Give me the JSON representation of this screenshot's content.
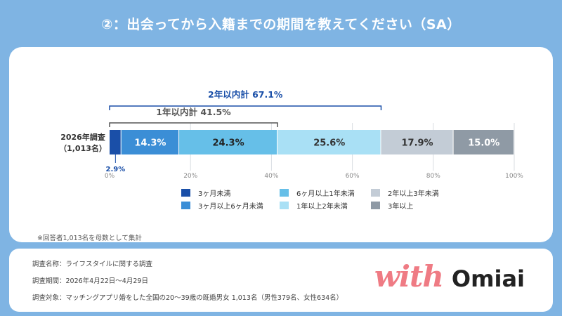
{
  "title": "②：出会ってから入籍までの期間を教えてください（SA）",
  "chart_data": {
    "type": "bar",
    "orientation": "horizontal-stacked-100",
    "category": "2026年調査（1,013名）",
    "category_lines": [
      "2026年調査",
      "（1,013名）"
    ],
    "series": [
      {
        "name": "3ヶ月未満",
        "value": 2.9,
        "label": "2.9%",
        "color": "#1a4fa8"
      },
      {
        "name": "3ヶ月以上6ヶ月未満",
        "value": 14.3,
        "label": "14.3%",
        "color": "#3b8ed6"
      },
      {
        "name": "6ヶ月以上1年未満",
        "value": 24.3,
        "label": "24.3%",
        "color": "#66bfe8"
      },
      {
        "name": "1年以上2年未満",
        "value": 25.6,
        "label": "25.6%",
        "color": "#a9e0f5"
      },
      {
        "name": "2年以上3年未満",
        "value": 17.9,
        "label": "17.9%",
        "color": "#c3ccd6"
      },
      {
        "name": "3年以上",
        "value": 15.0,
        "label": "15.0%",
        "color": "#8f9aa5"
      }
    ],
    "xlim": [
      0,
      100
    ],
    "ticks": [
      "0%",
      "20%",
      "40%",
      "60%",
      "80%",
      "100%"
    ],
    "tick_values": [
      0,
      20,
      40,
      60,
      80,
      100
    ],
    "annotations": [
      {
        "text": "2年以内計 67.1%",
        "from": 0,
        "to": 67.1,
        "color": "#1a4fa8"
      },
      {
        "text": "1年以内計 41.5%",
        "from": 0,
        "to": 41.5,
        "color": "#555555"
      }
    ],
    "legend_order": [
      0,
      2,
      4,
      1,
      3,
      5
    ]
  },
  "note": "※回答者1,013名を母数として集計",
  "footer": {
    "line1": "調査名称：ライフスタイルに関する調査",
    "line2": "調査期間：2026年4月22日〜4月29日",
    "line3": "調査対象：マッチングアプリ婚をした全国の20〜39歳の既婚男女 1,013名（男性379名、女性634名）"
  },
  "logo": {
    "part1": "with",
    "part2": "Omiai"
  }
}
